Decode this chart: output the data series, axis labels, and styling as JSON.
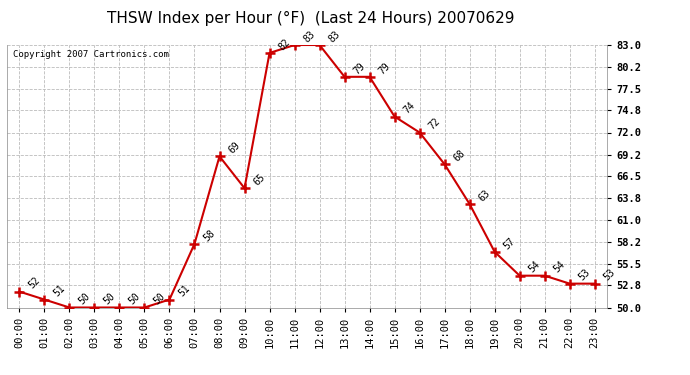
{
  "title": "THSW Index per Hour (°F)  (Last 24 Hours) 20070629",
  "copyright": "Copyright 2007 Cartronics.com",
  "hours": [
    "00:00",
    "01:00",
    "02:00",
    "03:00",
    "04:00",
    "05:00",
    "06:00",
    "07:00",
    "08:00",
    "09:00",
    "10:00",
    "11:00",
    "12:00",
    "13:00",
    "14:00",
    "15:00",
    "16:00",
    "17:00",
    "18:00",
    "19:00",
    "20:00",
    "21:00",
    "22:00",
    "23:00"
  ],
  "values": [
    52,
    51,
    50,
    50,
    50,
    50,
    51,
    58,
    69,
    65,
    82,
    83,
    83,
    79,
    79,
    74,
    72,
    68,
    63,
    57,
    54,
    54,
    53,
    53
  ],
  "line_color": "#cc0000",
  "marker_color": "#cc0000",
  "bg_color": "#ffffff",
  "grid_color": "#bbbbbb",
  "ylim_min": 50.0,
  "ylim_max": 83.0,
  "yticks": [
    50.0,
    52.8,
    55.5,
    58.2,
    61.0,
    63.8,
    66.5,
    69.2,
    72.0,
    74.8,
    77.5,
    80.2,
    83.0
  ],
  "title_fontsize": 11,
  "label_fontsize": 7,
  "tick_fontsize": 7.5,
  "copyright_fontsize": 6.5
}
